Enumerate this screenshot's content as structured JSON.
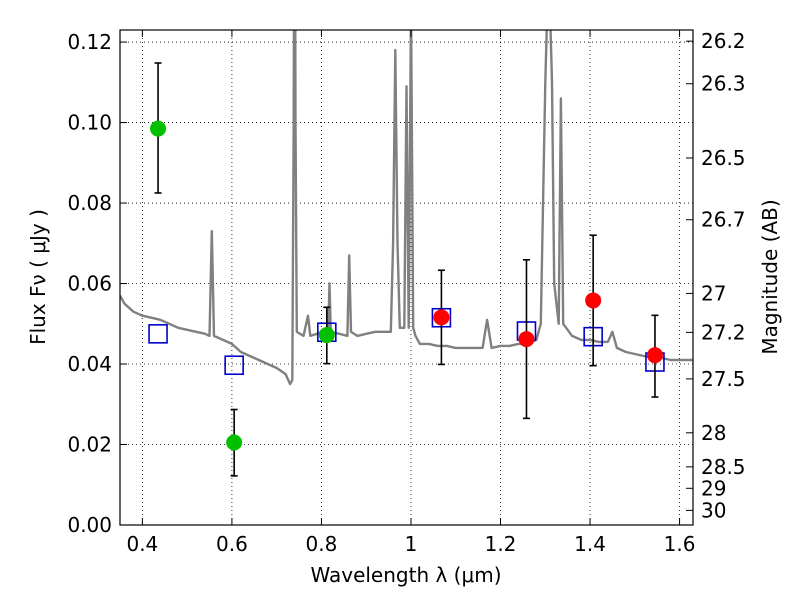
{
  "chart_data": {
    "type": "scatter",
    "xlabel": "Wavelength  λ (μm)",
    "ylabel": "Flux  Fν  ( μJy )",
    "y2label": "Magnitude (AB)",
    "xlim": [
      0.35,
      1.63
    ],
    "ylim": [
      0.0,
      0.123
    ],
    "grid": true,
    "legend": "none",
    "x_ticks": [
      0.4,
      0.6,
      0.8,
      1.0,
      1.2,
      1.4,
      1.6
    ],
    "x_tick_labels": [
      "0.4",
      "0.6",
      "0.8",
      "1",
      "1.2",
      "1.4",
      "1.6"
    ],
    "y_ticks": [
      0.0,
      0.02,
      0.04,
      0.06,
      0.08,
      0.1,
      0.12
    ],
    "y_tick_labels": [
      "0.00",
      "0.02",
      "0.04",
      "0.06",
      "0.08",
      "0.10",
      "0.12"
    ],
    "y2_ticks": [
      26.2,
      26.3,
      26.5,
      26.7,
      27,
      27.2,
      27.5,
      28,
      28.5,
      29,
      30
    ],
    "y2_tick_labels": [
      "26.2",
      "26.3",
      "26.5",
      "26.7",
      "27",
      "27.2",
      "27.5",
      "28",
      "28.5",
      "29",
      "30"
    ],
    "colors": {
      "spectrum": "#808080",
      "green_points": "#00c000",
      "red_points": "#ff0000",
      "model_squares": "#0000cc",
      "errorbars": "#000000"
    },
    "series": [
      {
        "kind": "line",
        "points": [
          [
            0.35,
            0.057
          ],
          [
            0.36,
            0.055
          ],
          [
            0.38,
            0.053
          ],
          [
            0.4,
            0.052
          ],
          [
            0.42,
            0.0515
          ],
          [
            0.44,
            0.051
          ],
          [
            0.46,
            0.05
          ],
          [
            0.48,
            0.049
          ],
          [
            0.5,
            0.0485
          ],
          [
            0.52,
            0.048
          ],
          [
            0.54,
            0.0475
          ],
          [
            0.55,
            0.047
          ],
          [
            0.555,
            0.073
          ],
          [
            0.56,
            0.047
          ],
          [
            0.57,
            0.0465
          ],
          [
            0.58,
            0.046
          ],
          [
            0.6,
            0.045
          ],
          [
            0.62,
            0.043
          ],
          [
            0.64,
            0.042
          ],
          [
            0.66,
            0.041
          ],
          [
            0.68,
            0.04
          ],
          [
            0.7,
            0.039
          ],
          [
            0.72,
            0.0375
          ],
          [
            0.73,
            0.035
          ],
          [
            0.735,
            0.036
          ],
          [
            0.738,
            0.1
          ],
          [
            0.74,
            0.2
          ],
          [
            0.742,
            0.1
          ],
          [
            0.745,
            0.048
          ],
          [
            0.76,
            0.047
          ],
          [
            0.77,
            0.052
          ],
          [
            0.775,
            0.047
          ],
          [
            0.79,
            0.0475
          ],
          [
            0.8,
            0.048
          ],
          [
            0.815,
            0.048
          ],
          [
            0.818,
            0.06
          ],
          [
            0.821,
            0.048
          ],
          [
            0.84,
            0.0475
          ],
          [
            0.858,
            0.047
          ],
          [
            0.862,
            0.067
          ],
          [
            0.866,
            0.048
          ],
          [
            0.88,
            0.047
          ],
          [
            0.9,
            0.0475
          ],
          [
            0.92,
            0.048
          ],
          [
            0.94,
            0.048
          ],
          [
            0.955,
            0.048
          ],
          [
            0.96,
            0.07
          ],
          [
            0.965,
            0.118
          ],
          [
            0.97,
            0.07
          ],
          [
            0.975,
            0.049
          ],
          [
            0.985,
            0.049
          ],
          [
            0.99,
            0.109
          ],
          [
            0.995,
            0.049
          ],
          [
            1.0,
            0.13
          ],
          [
            1.005,
            0.049
          ],
          [
            1.01,
            0.047
          ],
          [
            1.02,
            0.045
          ],
          [
            1.04,
            0.045
          ],
          [
            1.06,
            0.0445
          ],
          [
            1.08,
            0.0445
          ],
          [
            1.1,
            0.044
          ],
          [
            1.12,
            0.044
          ],
          [
            1.14,
            0.044
          ],
          [
            1.16,
            0.044
          ],
          [
            1.17,
            0.051
          ],
          [
            1.18,
            0.044
          ],
          [
            1.2,
            0.0445
          ],
          [
            1.22,
            0.0445
          ],
          [
            1.24,
            0.045
          ],
          [
            1.26,
            0.045
          ],
          [
            1.28,
            0.046
          ],
          [
            1.29,
            0.05
          ],
          [
            1.3,
            0.11
          ],
          [
            1.305,
            0.13
          ],
          [
            1.31,
            0.13
          ],
          [
            1.315,
            0.11
          ],
          [
            1.32,
            0.06
          ],
          [
            1.33,
            0.05
          ],
          [
            1.335,
            0.106
          ],
          [
            1.34,
            0.05
          ],
          [
            1.36,
            0.047
          ],
          [
            1.38,
            0.046
          ],
          [
            1.4,
            0.046
          ],
          [
            1.42,
            0.0455
          ],
          [
            1.44,
            0.0455
          ],
          [
            1.45,
            0.048
          ],
          [
            1.46,
            0.044
          ],
          [
            1.48,
            0.043
          ],
          [
            1.5,
            0.0425
          ],
          [
            1.52,
            0.042
          ],
          [
            1.54,
            0.0415
          ],
          [
            1.56,
            0.0415
          ],
          [
            1.58,
            0.041
          ],
          [
            1.6,
            0.041
          ],
          [
            1.63,
            0.041
          ]
        ]
      },
      {
        "kind": "points_green",
        "x": [
          0.435,
          0.605,
          0.812
        ],
        "y": [
          0.0985,
          0.0205,
          0.0472
        ],
        "yerr_low": [
          0.0825,
          0.0122,
          0.0401
        ],
        "yerr_high": [
          0.1148,
          0.0287,
          0.0541
        ]
      },
      {
        "kind": "points_red",
        "x": [
          1.068,
          1.258,
          1.407,
          1.545
        ],
        "y": [
          0.0516,
          0.0462,
          0.0558,
          0.0422
        ],
        "yerr_low": [
          0.0399,
          0.0265,
          0.0396,
          0.0318
        ],
        "yerr_high": [
          0.0633,
          0.0659,
          0.072,
          0.0521
        ]
      },
      {
        "kind": "squares_blue",
        "x": [
          0.435,
          0.605,
          0.812,
          1.068,
          1.258,
          1.407,
          1.545
        ],
        "y": [
          0.0475,
          0.0397,
          0.0479,
          0.0515,
          0.0482,
          0.0468,
          0.0405
        ]
      }
    ]
  }
}
